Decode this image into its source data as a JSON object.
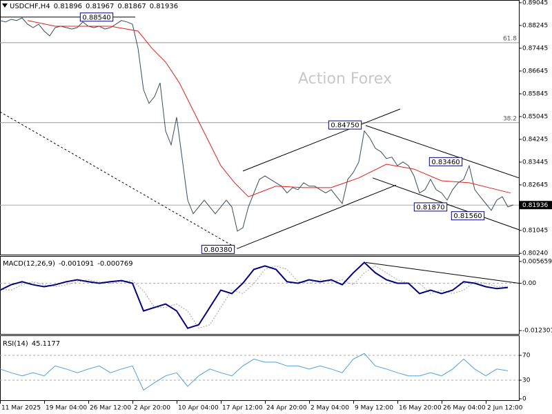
{
  "chart_data": [
    {
      "type": "line",
      "title": "USDCHF,H4",
      "quote": [
        0.81896,
        0.81967,
        0.81867,
        0.81936
      ],
      "watermark": "Action Forex",
      "xlim": [
        0,
        376
      ],
      "ylim": [
        0.8022,
        0.8914
      ],
      "yticks": [
        0.89045,
        0.88245,
        0.87445,
        0.86645,
        0.85845,
        0.85045,
        0.84245,
        0.83445,
        0.82645,
        0.81045,
        {
          "value": 0.8024,
          "label": "0.80240"
        }
      ],
      "x": [
        0,
        4,
        8,
        12,
        16,
        20,
        24,
        28,
        32,
        36,
        40,
        44,
        48,
        52,
        56,
        60,
        64,
        68,
        72,
        76,
        80,
        84,
        88,
        92,
        96,
        100,
        104,
        108,
        112,
        116,
        120,
        124,
        128,
        132,
        136,
        140,
        144,
        148,
        152,
        156,
        160,
        164,
        168,
        172,
        176,
        180,
        184,
        188,
        192,
        196,
        200,
        204,
        208,
        212,
        216,
        220,
        224,
        228,
        232,
        236,
        240,
        244,
        248,
        252,
        256,
        260,
        264,
        268,
        272,
        276,
        280,
        284,
        288,
        292,
        296,
        300,
        304,
        308,
        312,
        316,
        320,
        324,
        328,
        332,
        336,
        340,
        344,
        348,
        352,
        356,
        360,
        364,
        368,
        372
      ],
      "series": [
        {
          "name": "USDCHF",
          "color": "#3a4a5a",
          "width": 1,
          "values": [
            0.8842,
            0.8837,
            0.8846,
            0.8842,
            0.8851,
            0.8829,
            0.8817,
            0.8829,
            0.8805,
            0.8788,
            0.8817,
            0.8822,
            0.8817,
            0.8812,
            0.8817,
            0.8837,
            0.8822,
            0.8817,
            0.8822,
            0.8812,
            0.8817,
            0.8829,
            0.8842,
            0.8837,
            0.8829,
            0.8745,
            0.8599,
            0.8551,
            0.8575,
            0.8623,
            0.8454,
            0.8405,
            0.8502,
            0.8357,
            0.8211,
            0.8163,
            0.8187,
            0.8211,
            0.8187,
            0.8163,
            0.8187,
            0.8211,
            0.8187,
            0.8102,
            0.8114,
            0.8187,
            0.8236,
            0.8284,
            0.8296,
            0.8284,
            0.8272,
            0.826,
            0.8236,
            0.8255,
            0.8248,
            0.8272,
            0.826,
            0.826,
            0.8248,
            0.8236,
            0.8248,
            0.8223,
            0.8199,
            0.8284,
            0.8308,
            0.8345,
            0.8454,
            0.8429,
            0.8393,
            0.8381,
            0.8357,
            0.8362,
            0.8332,
            0.8345,
            0.8332,
            0.8296,
            0.8236,
            0.8248,
            0.8284,
            0.8248,
            0.8236,
            0.8211,
            0.8248,
            0.8272,
            0.8284,
            0.8332,
            0.8248,
            0.8223,
            0.8199,
            0.8175,
            0.8211,
            0.8223,
            0.8187,
            0.8194
          ]
        },
        {
          "name": "MA",
          "color": "#e0201b",
          "width": 1,
          "x": [
            20,
            40,
            60,
            80,
            100,
            110,
            120,
            130,
            140,
            150,
            160,
            170,
            180,
            200,
            220,
            240,
            260,
            280,
            300,
            320,
            340,
            360,
            370
          ],
          "values": [
            0.8842,
            0.8822,
            0.8822,
            0.8822,
            0.8805,
            0.8745,
            0.8696,
            0.8623,
            0.8526,
            0.8429,
            0.8332,
            0.8272,
            0.8223,
            0.826,
            0.8255,
            0.8255,
            0.8289,
            0.8337,
            0.832,
            0.8279,
            0.8272,
            0.8248,
            0.8236
          ]
        }
      ],
      "levels": [
        {
          "label": "61.8",
          "value": 0.8764
        },
        {
          "label": "38.2",
          "value": 0.8483
        }
      ],
      "trendlines": [
        {
          "x": [
            176,
            290
          ],
          "values": [
            0.8313,
            0.8531
          ],
          "style": "solid"
        },
        {
          "x": [
            172,
            287
          ],
          "values": [
            0.8041,
            0.8264
          ],
          "style": "solid"
        },
        {
          "x": [
            265,
            376
          ],
          "values": [
            0.8473,
            0.8289
          ],
          "style": "solid"
        },
        {
          "x": [
            270,
            376
          ],
          "values": [
            0.8289,
            0.8107
          ],
          "style": "solid"
        },
        {
          "x": [
            0,
            172
          ],
          "values": [
            0.8521,
            0.8041
          ],
          "style": "dashed"
        },
        {
          "x": [
            0,
            98
          ],
          "values": [
            0.8854,
            0.8854
          ],
          "style": "solid"
        }
      ],
      "annotations": [
        {
          "value": 0.8854,
          "label": "0.88540",
          "x": 70
        },
        {
          "value": 0.8475,
          "label": "0.84750",
          "x": 250
        },
        {
          "value": 0.8346,
          "label": "0.83460",
          "x": 323
        },
        {
          "value": 0.8187,
          "label": "0.81870",
          "x": 312
        },
        {
          "value": 0.8156,
          "label": "0.81560",
          "x": 339
        },
        {
          "value": 0.8038,
          "label": "0.80380",
          "x": 158
        }
      ],
      "last_price": 0.81936
    },
    {
      "type": "line",
      "title": "MACD(12,26,9)",
      "quote": [
        -0.001091,
        -0.000769
      ],
      "xlim": [
        0,
        376
      ],
      "ylim": [
        -0.013,
        0.0069
      ],
      "yticks": [
        0.005659,
        {
          "value": 0,
          "label": "0.00"
        },
        -0.012301
      ],
      "hlines": [
        0
      ],
      "x": [
        0,
        8,
        16,
        24,
        32,
        40,
        48,
        56,
        64,
        72,
        80,
        88,
        96,
        104,
        112,
        120,
        128,
        136,
        144,
        152,
        160,
        168,
        176,
        184,
        192,
        200,
        208,
        216,
        224,
        232,
        240,
        248,
        256,
        264,
        272,
        280,
        288,
        296,
        304,
        312,
        320,
        328,
        336,
        344,
        352,
        360,
        368
      ],
      "series": [
        {
          "name": "Signal",
          "color": "#a0a0a0",
          "width": 1,
          "style": "dotted",
          "values": [
            -0.0015,
            -0.0018,
            -0.0004,
            0.0004,
            -0.0004,
            -0.0009,
            -0.0004,
            0.0004,
            0.0009,
            0.0004,
            0,
            0.0004,
            0.0007,
            -0.002,
            -0.0063,
            -0.0063,
            -0.0054,
            -0.0072,
            -0.0117,
            -0.0108,
            -0.0063,
            -0.0018,
            -0.0027,
            0,
            0.0036,
            0.0045,
            0.0036,
            0.0004,
            0,
            0.0009,
            0.0004,
            0.0009,
            -0.0004,
            0.0027,
            0.0045,
            0.0027,
            0.0009,
            0,
            0,
            -0.0027,
            -0.0018,
            -0.0027,
            -0.0018,
            0.0004,
            0,
            -0.0009,
            -0.0008
          ]
        },
        {
          "name": "MACD",
          "color": "#000080",
          "width": 2,
          "values": [
            -0.0018,
            -0.0004,
            0.0004,
            -0.0004,
            -0.0009,
            -0.0004,
            0.0004,
            0.0009,
            0.0004,
            0,
            0.0004,
            0.0007,
            0,
            -0.0072,
            -0.0063,
            -0.0054,
            -0.0072,
            -0.0117,
            -0.0108,
            -0.0063,
            -0.0018,
            -0.0027,
            0,
            0.0036,
            0.0045,
            0.0036,
            0.0004,
            0,
            0.0009,
            0.0004,
            0.0009,
            -0.0004,
            0.0027,
            0.0054,
            0.0027,
            0.0009,
            0,
            0,
            -0.0027,
            -0.0018,
            -0.0027,
            -0.0018,
            0.0004,
            0,
            -0.0009,
            -0.0014,
            -0.0011
          ]
        }
      ],
      "trendlines": [
        {
          "x": [
            265,
            376
          ],
          "values": [
            0.0054,
            0
          ],
          "style": "solid"
        }
      ]
    },
    {
      "type": "line",
      "title": "RSI(14)",
      "quote": [
        45.1177
      ],
      "xlim": [
        0,
        376
      ],
      "ylim": [
        0,
        100
      ],
      "yticks": [
        70,
        30,
        0
      ],
      "hlines": [
        70,
        30
      ],
      "x": [
        0,
        8,
        16,
        24,
        32,
        40,
        48,
        56,
        64,
        72,
        80,
        88,
        96,
        104,
        112,
        120,
        128,
        136,
        144,
        152,
        160,
        168,
        176,
        184,
        192,
        200,
        208,
        216,
        224,
        232,
        240,
        248,
        256,
        264,
        272,
        280,
        288,
        296,
        304,
        312,
        320,
        328,
        336,
        344,
        352,
        360,
        368
      ],
      "series": [
        {
          "name": "RSI",
          "color": "#4f9fd8",
          "width": 1,
          "values": [
            48,
            42,
            37,
            42,
            37,
            53,
            48,
            42,
            48,
            53,
            42,
            48,
            53,
            14,
            26,
            37,
            42,
            20,
            37,
            48,
            42,
            37,
            53,
            64,
            59,
            59,
            53,
            53,
            48,
            53,
            48,
            42,
            64,
            73,
            53,
            48,
            42,
            37,
            37,
            42,
            37,
            48,
            64,
            48,
            37,
            48,
            45.1
          ]
        }
      ],
      "xticks": [
        {
          "value": 0,
          "label": "11 Mar 2025"
        },
        {
          "value": 32,
          "label": "19 Mar 04:00"
        },
        {
          "value": 64,
          "label": "26 Mar 12:00"
        },
        {
          "value": 96,
          "label": "2 Apr 20:00"
        },
        {
          "value": 128,
          "label": "10 Apr 04:00"
        },
        {
          "value": 160,
          "label": "17 Apr 12:00"
        },
        {
          "value": 192,
          "label": "24 Apr 20:00"
        },
        {
          "value": 224,
          "label": "2 May 04:00"
        },
        {
          "value": 256,
          "label": "9 May 12:00"
        },
        {
          "value": 288,
          "label": "16 May 20:00"
        },
        {
          "value": 320,
          "label": "26 May 04:00"
        },
        {
          "value": 352,
          "label": "2 Jun 12:00"
        }
      ]
    }
  ]
}
